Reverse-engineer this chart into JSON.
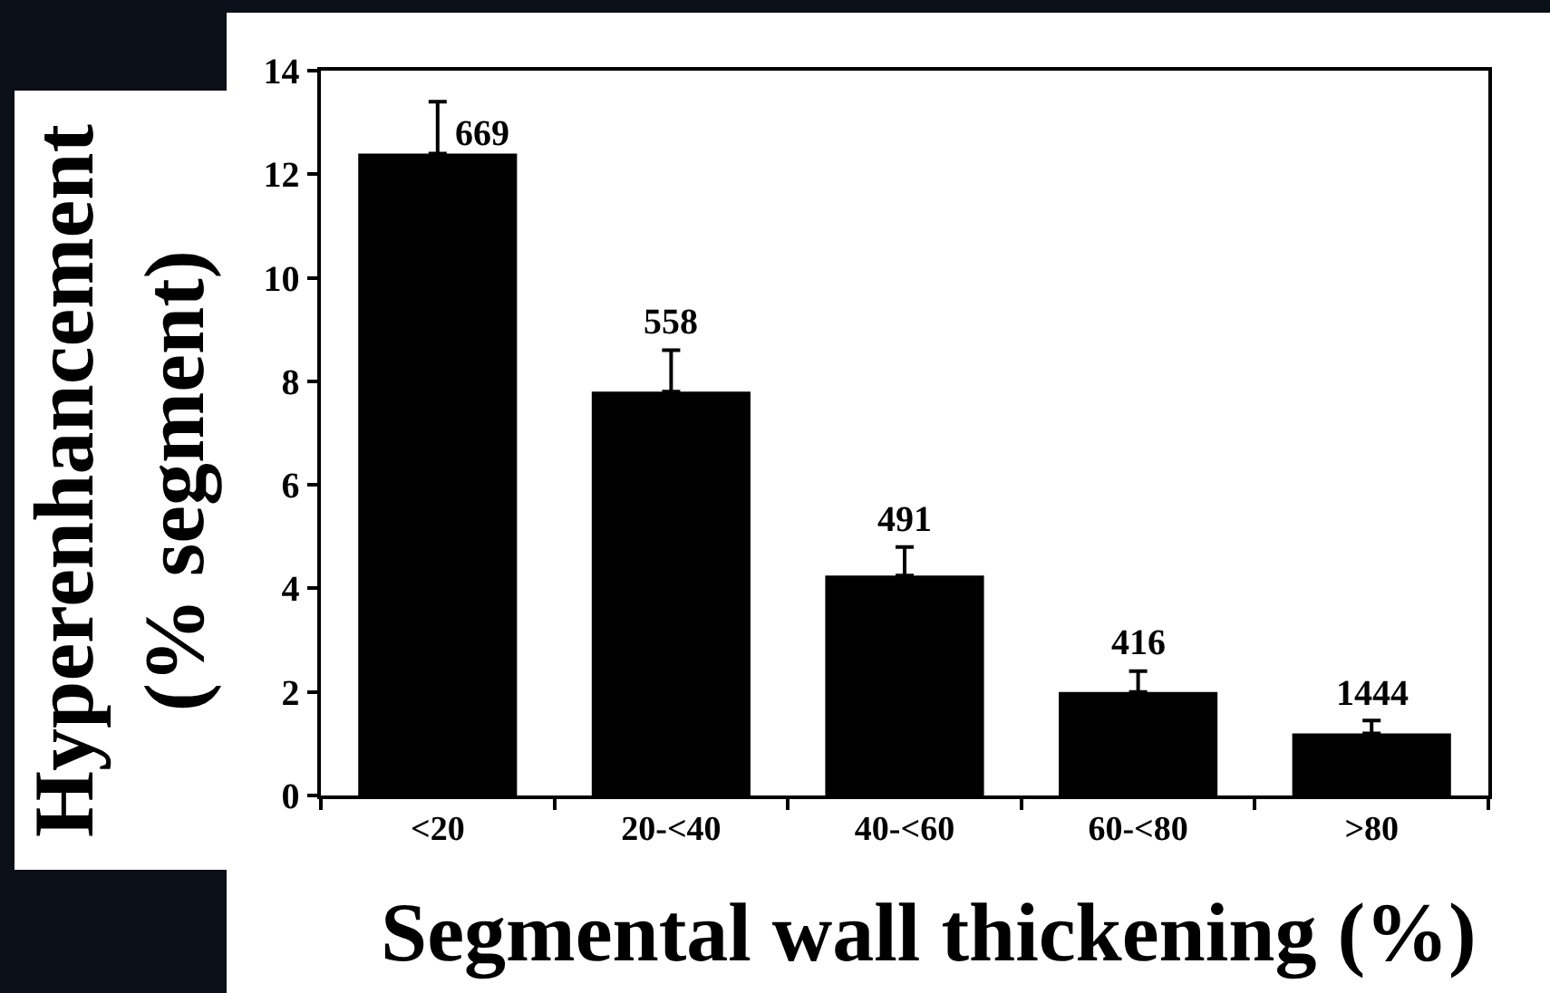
{
  "chart_data": {
    "type": "bar",
    "xlabel": "Segmental wall thickening (%)",
    "ylabel": "Hyperenhancement\n(% segment)",
    "categories": [
      "<20",
      "20-<40",
      "40-<60",
      "60-<80",
      ">80"
    ],
    "values": [
      12.4,
      7.8,
      4.25,
      2.0,
      1.2
    ],
    "errors": [
      [
        12.4,
        13.4
      ],
      [
        7.8,
        8.6
      ],
      [
        4.25,
        4.8
      ],
      [
        2.0,
        2.4
      ],
      [
        1.2,
        1.45
      ]
    ],
    "annotations": [
      {
        "text": "669",
        "x": "<20",
        "y": 13.4
      },
      {
        "text": "558",
        "x": "20-<40",
        "y": 8.6
      },
      {
        "text": "491",
        "x": "40-<60",
        "y": 4.8
      },
      {
        "text": "416",
        "x": "60-<80",
        "y": 2.4
      },
      {
        "text": "1444",
        "x": ">80",
        "y": 1.45
      }
    ],
    "color": "#000000",
    "ylim": [
      0,
      14
    ],
    "yticks": [
      0,
      2,
      4,
      6,
      8,
      10,
      12,
      14
    ],
    "grid": false
  }
}
